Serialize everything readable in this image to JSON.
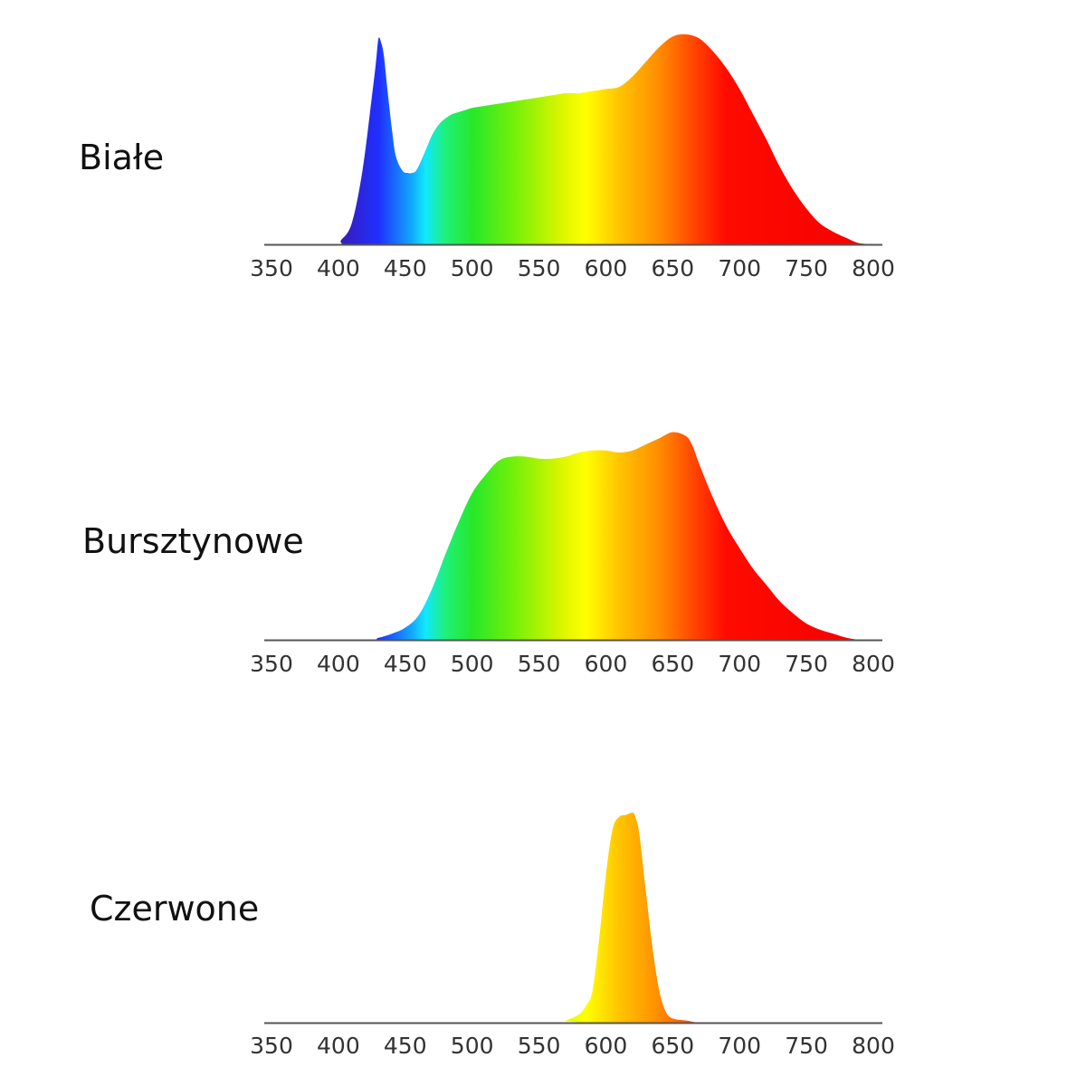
{
  "chart_data": [
    {
      "type": "area",
      "label": "Białe",
      "x_ticks": [
        350,
        400,
        450,
        500,
        550,
        600,
        650,
        700,
        750,
        800
      ],
      "xlim": [
        350,
        800
      ],
      "x": [
        350,
        398,
        402,
        410,
        418,
        425,
        428,
        430,
        432,
        434,
        437,
        440,
        443,
        448,
        452,
        455,
        458,
        462,
        466,
        470,
        475,
        480,
        485,
        490,
        495,
        500,
        510,
        520,
        530,
        540,
        550,
        560,
        570,
        580,
        590,
        600,
        610,
        620,
        630,
        640,
        650,
        660,
        670,
        680,
        690,
        700,
        710,
        720,
        730,
        740,
        750,
        760,
        770,
        780,
        785,
        790,
        800
      ],
      "y": [
        0,
        0,
        2,
        10,
        35,
        70,
        86,
        98,
        96,
        90,
        72,
        55,
        42,
        35,
        34,
        34,
        35,
        40,
        46,
        52,
        57,
        60,
        62,
        63,
        64,
        65,
        66,
        67,
        68,
        69,
        70,
        71,
        72,
        72,
        73,
        74,
        75,
        80,
        87,
        94,
        99,
        100,
        98,
        92,
        84,
        74,
        62,
        50,
        37,
        26,
        17,
        10,
        6,
        3,
        1.5,
        0.5,
        0
      ],
      "ylim": [
        0,
        100
      ]
    },
    {
      "type": "area",
      "label": "Bursztynowe",
      "x_ticks": [
        350,
        400,
        450,
        500,
        550,
        600,
        650,
        700,
        750,
        800
      ],
      "xlim": [
        350,
        800
      ],
      "x": [
        350,
        420,
        430,
        440,
        450,
        460,
        470,
        480,
        490,
        500,
        510,
        520,
        530,
        540,
        550,
        560,
        570,
        580,
        590,
        600,
        610,
        620,
        630,
        640,
        650,
        660,
        665,
        670,
        680,
        690,
        700,
        710,
        720,
        730,
        740,
        750,
        760,
        770,
        780,
        790,
        800
      ],
      "y": [
        0,
        0,
        1,
        3,
        6,
        12,
        25,
        42,
        58,
        72,
        81,
        88,
        90,
        90,
        89,
        89,
        90,
        92,
        93,
        93,
        92,
        93,
        96,
        99,
        102,
        100,
        95,
        86,
        70,
        56,
        45,
        35,
        27,
        19,
        13,
        8,
        5,
        3,
        1,
        0,
        0
      ],
      "ylim": [
        0,
        100
      ]
    },
    {
      "type": "area",
      "label": "Czerwone",
      "x_ticks": [
        350,
        400,
        450,
        500,
        550,
        600,
        650,
        700,
        750,
        800
      ],
      "xlim": [
        350,
        800
      ],
      "x": [
        350,
        560,
        570,
        580,
        585,
        590,
        595,
        600,
        605,
        610,
        615,
        620,
        622,
        625,
        630,
        635,
        640,
        645,
        650,
        660,
        670,
        680,
        800
      ],
      "y": [
        0,
        0,
        1,
        4,
        8,
        15,
        40,
        70,
        92,
        98,
        99,
        100,
        98,
        90,
        62,
        35,
        15,
        5,
        2,
        1,
        0,
        0,
        0
      ],
      "ylim": [
        0,
        100
      ]
    }
  ],
  "colors": {
    "spectrum_stops": [
      {
        "nm": 400,
        "color": "#3a1bb5"
      },
      {
        "nm": 430,
        "color": "#1f2fff"
      },
      {
        "nm": 455,
        "color": "#12a8ff"
      },
      {
        "nm": 465,
        "color": "#11e8ff"
      },
      {
        "nm": 480,
        "color": "#1ff07a"
      },
      {
        "nm": 500,
        "color": "#26e82a"
      },
      {
        "nm": 530,
        "color": "#70f00a"
      },
      {
        "nm": 565,
        "color": "#d6f500"
      },
      {
        "nm": 585,
        "color": "#ffff00"
      },
      {
        "nm": 610,
        "color": "#ffc400"
      },
      {
        "nm": 640,
        "color": "#ff8c00"
      },
      {
        "nm": 670,
        "color": "#ff3a00"
      },
      {
        "nm": 690,
        "color": "#ff0a00"
      },
      {
        "nm": 800,
        "color": "#f50000"
      }
    ],
    "axis": "#555555",
    "tick_text": "#333333"
  }
}
